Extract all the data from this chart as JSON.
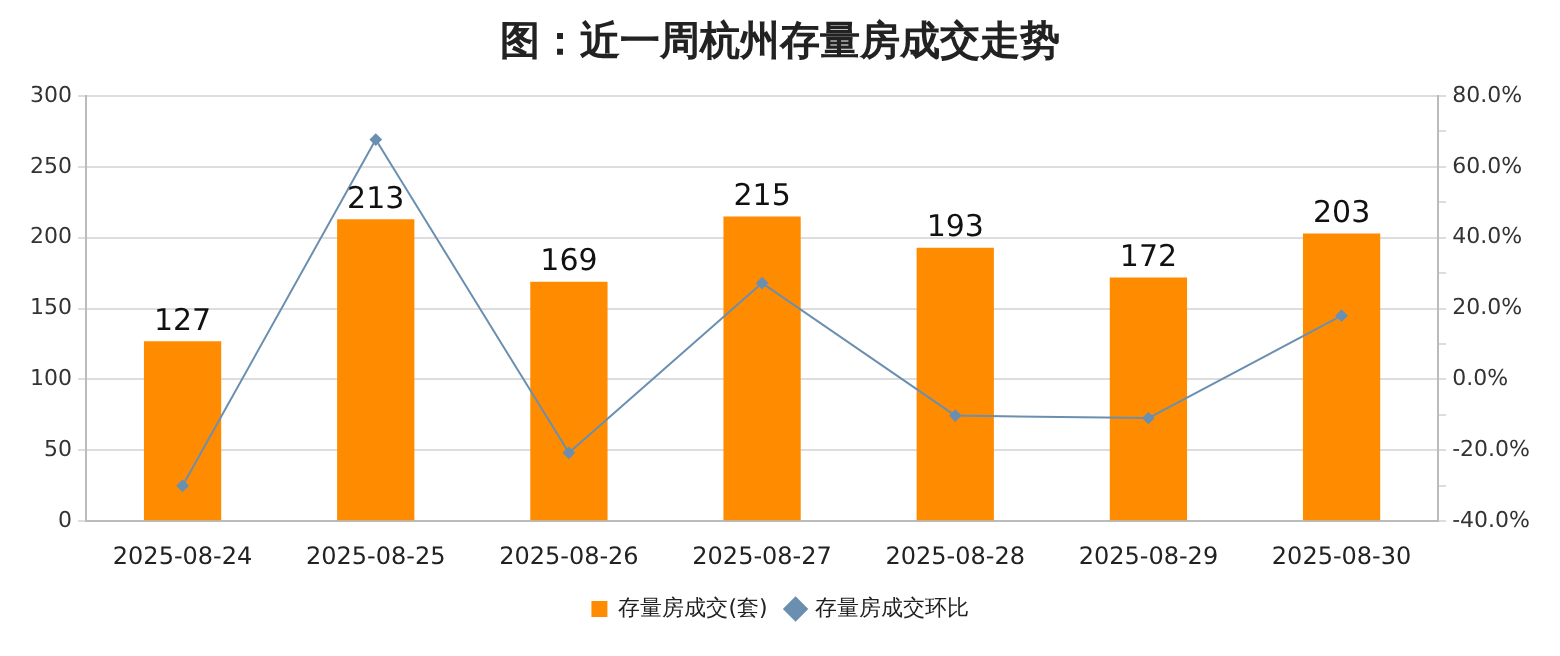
{
  "chart_data": {
    "type": "bar",
    "title": "图：近一周杭州存量房成交走势",
    "categories": [
      "2025-08-24",
      "2025-08-25",
      "2025-08-26",
      "2025-08-27",
      "2025-08-28",
      "2025-08-29",
      "2025-08-30"
    ],
    "series": [
      {
        "name": "存量房成交(套)",
        "color": "#ff8c00",
        "values": [
          127,
          213,
          169,
          215,
          193,
          172,
          203
        ],
        "value_labels": [
          "127",
          "213",
          "169",
          "215",
          "193",
          "172",
          "203"
        ]
      },
      {
        "name": "存量房成交环比",
        "type": "line",
        "axis": "y2",
        "color": "#6a8fb0",
        "marker": "diamond",
        "values": [
          -30.0,
          67.7,
          -20.7,
          27.2,
          -10.2,
          -10.9,
          18.0
        ]
      }
    ],
    "ylim": [
      0,
      300
    ],
    "yticks": [
      0,
      50,
      100,
      150,
      200,
      250,
      300
    ],
    "y2lim": [
      -40,
      80
    ],
    "y2ticks": [
      {
        "value": -40,
        "label": "-40.0%"
      },
      {
        "value": -30,
        "label": null
      },
      {
        "value": -20,
        "label": "-20.0%"
      },
      {
        "value": -10,
        "label": null
      },
      {
        "value": 0,
        "label": "0.0%"
      },
      {
        "value": 10,
        "label": null
      },
      {
        "value": 20,
        "label": "20.0%"
      },
      {
        "value": 30,
        "label": null
      },
      {
        "value": 40,
        "label": "40.0%"
      },
      {
        "value": 50,
        "label": null
      },
      {
        "value": 60,
        "label": "60.0%"
      },
      {
        "value": 70,
        "label": null
      },
      {
        "value": 80,
        "label": "80.0%"
      }
    ],
    "grid": "y",
    "legend": "bottom"
  }
}
